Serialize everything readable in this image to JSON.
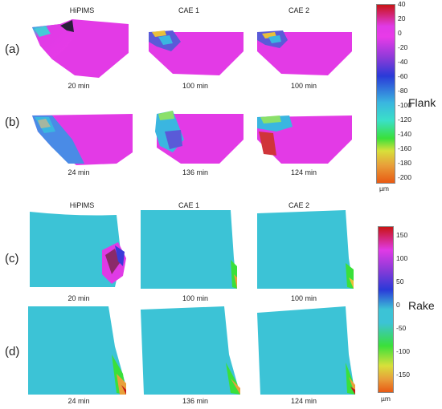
{
  "columns": [
    "HiPIMS",
    "CAE 1",
    "CAE 2"
  ],
  "flank": {
    "label": "Flank",
    "rows": [
      {
        "tag": "(a)",
        "times": [
          "20 min",
          "100 min",
          "100 min"
        ]
      },
      {
        "tag": "(b)",
        "times": [
          "24 min",
          "136 min",
          "124 min"
        ]
      }
    ],
    "scale": {
      "ticks": [
        "40",
        "20",
        "0",
        "-20",
        "-40",
        "-60",
        "-80",
        "-100",
        "-120",
        "-140",
        "-160",
        "-180",
        "-200"
      ],
      "unit": "µm"
    }
  },
  "rake": {
    "label": "Rake",
    "rows": [
      {
        "tag": "(c)",
        "times": [
          "20 min",
          "100 min",
          "100 min"
        ]
      },
      {
        "tag": "(d)",
        "times": [
          "24 min",
          "136 min",
          "124 min"
        ]
      }
    ],
    "scale": {
      "ticks": [
        "150",
        "100",
        "50",
        "0",
        "-50",
        "-100",
        "-150"
      ],
      "unit": "µm"
    }
  }
}
